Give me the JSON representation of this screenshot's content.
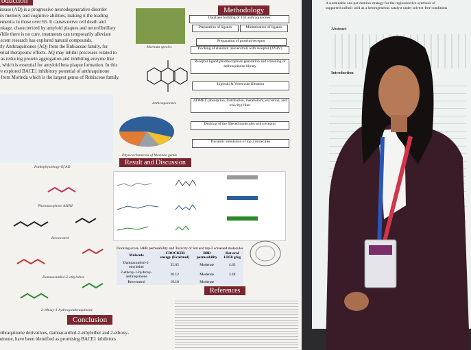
{
  "left_poster": {
    "intro_heading": "Introduction",
    "intro_text": [
      "disease (AD) is a progressive neurodegenerative disorder",
      "airs memory and cognitive abilities, making it the leading",
      "dementia in those over 65. It causes nerve cell death and",
      "rinkage, characterized by amyloid plaques and neurofibrillary",
      "While there is no cure, treatments can temporarily alleviate",
      "Recent research has explored natural compounds,",
      "arly Anthraquinones (AQ) from the Rubiaceae family, for",
      "tential therapeutic effects. AQ may inhibit processes related to",
      "h as reducing protein aggregation and inhibiting enzyme like",
      "1, which is essential for amyloid beta plaque formation. In this",
      "we explored BACE1 inhibitory potential of anthraquinone",
      "d from Morinda which is the largest genus of Rubiaceae family."
    ],
    "methodology_heading": "Methodology",
    "method_steps": [
      "Database building of 104 anthraquinones",
      "Preparation of ligands",
      "Minimization of ligands",
      "Preparation of proteins/receptor",
      "Docking of standard (resveratrol) with receptor (2ZHV)",
      "Receptor ligand pharmacophore generation and screening of anthraquinone library",
      "Lipinski & Veber rule filtration",
      "ADMET (absorption, distribution, metabolism, excretion, and toxicity) filter",
      "Docking of the filtered molecules with receptor",
      "Dynamic simulation of top 2 molecules"
    ],
    "captions": {
      "morinda": "Morinda species",
      "anthraquinones": "Anthraquinones",
      "physicochemicals": "Physicochemicals of Morinda genus",
      "pathophysiology": "Pathophysiology Of AD",
      "pharmacophore": "Pharmacophore ASHH",
      "resveratrol": "Resveratrol",
      "damnacanthol": "Damnacanthol-2-ethylether",
      "ethoxy": "2-ethoxy-1-hydroxyanthraquinone"
    },
    "results_heading": "Result and Discussion",
    "table": {
      "title": "Docking score, BBB permeability and Toxicity of Std and top-2 screened molecules",
      "headers": [
        "Molecule",
        "-CDOCKER energy (Kcal/mol)",
        "BBB permeability",
        "Rat oral LD50 g/kg"
      ],
      "rows": [
        [
          "Damnacanthol-2-ethylether",
          "25.05",
          "Moderate",
          "4.65"
        ],
        [
          "2-ethoxy-1-hydroxy-anthraquinone",
          "20.12",
          "Moderate",
          "2.48"
        ],
        [
          "Resveratrol",
          "19.18",
          "Moderate"
        ]
      ]
    },
    "conclusion_heading": "Conclusion",
    "conclusion_text": [
      "anthraquinone derivatives, damnacanthol-2-ethylether and 2-ethoxy-",
      "quinone, have been identified as promising BACE1 inhibitors"
    ],
    "references_heading": "References"
  },
  "right_poster": {
    "title_lines": [
      "A sustainable one-pot domino strategy for the regioselective synthesis of",
      "supported sulfuric acid as a heterogeneous catalyst under solvent-free conditions"
    ],
    "abstract_heading": "Abstract",
    "introduction_heading": "Introduction"
  }
}
